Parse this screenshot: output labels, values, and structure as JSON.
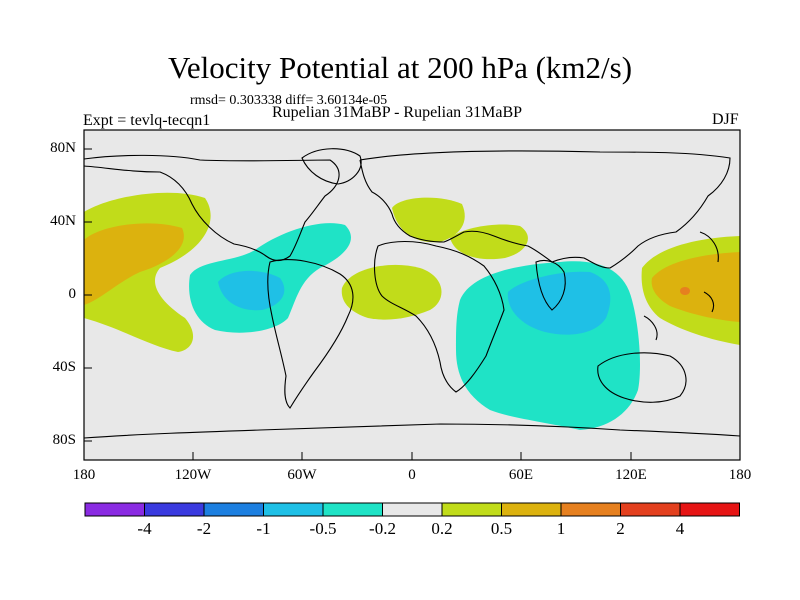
{
  "header": {
    "title": "Velocity Potential at 200 hPa (km2/s)",
    "stats": "rmsd= 0.303338 diff= 3.60134e-05",
    "expt": "Expt = tevlq-tecqn1",
    "comparison": "Rupelian  31MaBP - Rupelian  31MaBP",
    "season": "DJF"
  },
  "axes": {
    "lat_ticks": [
      "80N",
      "40N",
      "0",
      "40S",
      "80S"
    ],
    "lon_ticks": [
      "180",
      "120W",
      "60W",
      "0",
      "60E",
      "120E",
      "180"
    ]
  },
  "colorbar": {
    "colors": [
      "#8a2be2",
      "#3a3adf",
      "#1c7fe0",
      "#1fc0e6",
      "#1fe3c6",
      "#e8e8e8",
      "#c1dc1a",
      "#dcb20e",
      "#e6801f",
      "#e3401e",
      "#e61414"
    ],
    "labels": [
      "-4",
      "-2",
      "-1",
      "-0.5",
      "-0.2",
      "0.2",
      "0.5",
      "1",
      "2",
      "4"
    ]
  },
  "map": {
    "background": "#e8e8e8",
    "coast_color": "#000000"
  }
}
